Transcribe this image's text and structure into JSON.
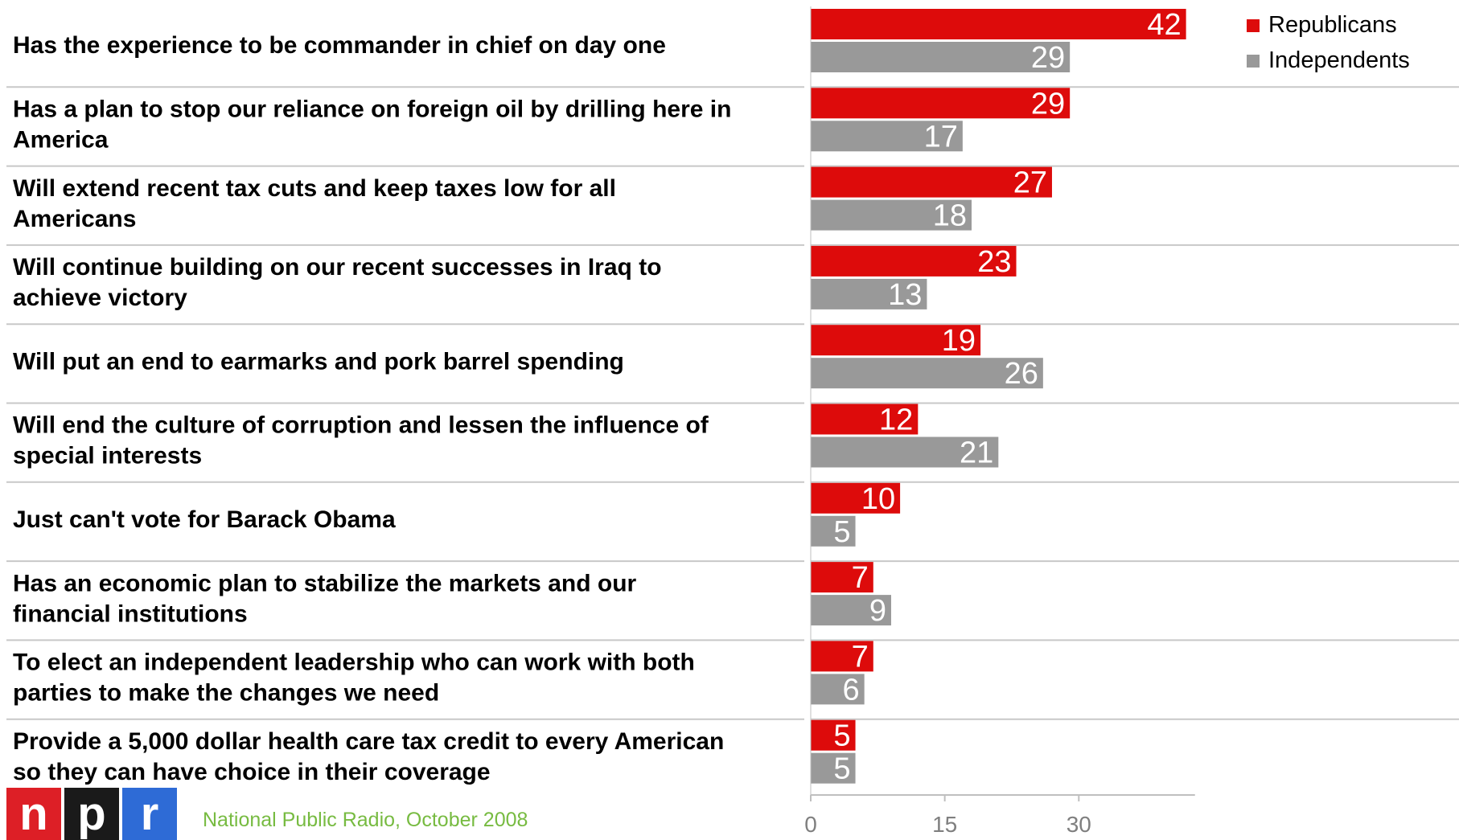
{
  "chart_data": {
    "type": "bar",
    "orientation": "horizontal",
    "categories": [
      [
        "Has the experience to be commander in chief on day one"
      ],
      [
        "Has a plan to stop our reliance on foreign oil by drilling here in",
        "America"
      ],
      [
        "Will extend recent tax cuts and keep taxes low for all",
        "Americans"
      ],
      [
        "Will continue building on our recent successes in Iraq to",
        "achieve victory"
      ],
      [
        "Will put an end to earmarks and pork barrel spending"
      ],
      [
        "Will end the culture of corruption and lessen the influence of",
        "special interests"
      ],
      [
        "Just can't vote for Barack Obama"
      ],
      [
        "Has an economic plan to stabilize the markets and our",
        "financial institutions"
      ],
      [
        "To elect an independent leadership who can work with both",
        "parties to make the changes we need"
      ],
      [
        "Provide a 5,000 dollar health care tax credit to every American",
        "so they can have choice in their coverage"
      ]
    ],
    "series": [
      {
        "name": "Republicans",
        "color": "#dd0b0b",
        "values": [
          42,
          29,
          27,
          23,
          19,
          12,
          10,
          7,
          7,
          5
        ]
      },
      {
        "name": "Independents",
        "color": "#999999",
        "values": [
          29,
          17,
          18,
          13,
          26,
          21,
          5,
          9,
          6,
          5
        ]
      }
    ],
    "x_ticks": [
      0,
      15,
      30
    ],
    "xlim": [
      0,
      43
    ],
    "legend_position": "top-right",
    "data_labels": true
  },
  "source": {
    "text": "National Public Radio, October 2008",
    "color": "#77bb41"
  },
  "logo": {
    "letters": [
      "n",
      "p",
      "r"
    ],
    "colors": [
      "#dd1f26",
      "#1a1a1a",
      "#2e6bd6"
    ]
  }
}
